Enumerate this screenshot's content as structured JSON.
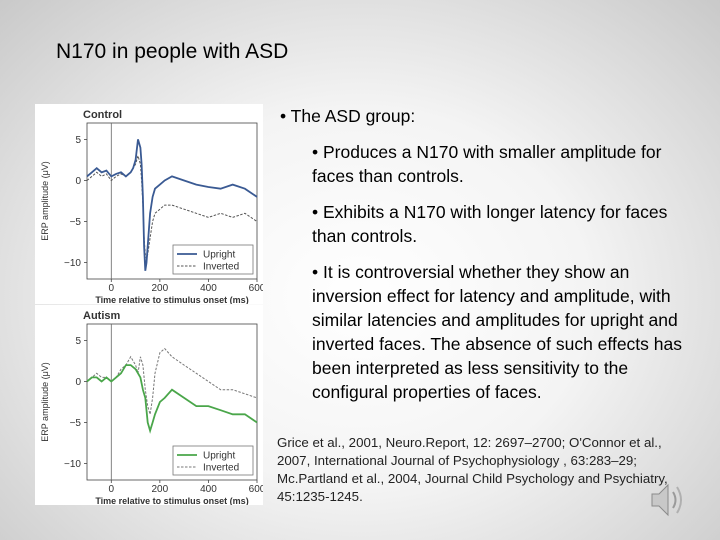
{
  "slide": {
    "title": "N170 in people with ASD",
    "bullets": {
      "main": "• The ASD group:",
      "sub": [
        "• Produces a N170 with smaller amplitude for faces than controls.",
        "• Exhibits a N170 with longer latency for faces than controls.",
        "• It is controversial whether they show an inversion effect for latency and amplitude, with similar latencies and amplitudes for upright and inverted faces. The absence of such effects has been interpreted as less sensitivity to the configural properties of faces."
      ]
    },
    "references": "Grice et al., 2001, Neuro.Report, 12: 2697–2700; O'Connor et al., 2007, International Journal of Psychophysiology , 63:283–29; Mc.Partland et al., 2004, Journal Child Psychology and Psychiatry, 45:1235-1245.",
    "icons": {
      "speaker": "speaker-icon"
    }
  },
  "chart_data": [
    {
      "type": "line",
      "title": "Control",
      "xlabel": "Time relative to stimulus onset (ms)",
      "ylabel": "ERP amplitude (μV)",
      "xlim": [
        -100,
        600
      ],
      "ylim": [
        -12,
        7
      ],
      "xticks": [
        0,
        200,
        400,
        600
      ],
      "yticks": [
        5,
        0,
        -5,
        -10
      ],
      "legend": "bottom-right",
      "series": [
        {
          "name": "Upright",
          "style": "solid",
          "color": "#3a5a93",
          "x": [
            -100,
            -80,
            -60,
            -40,
            -20,
            0,
            20,
            40,
            60,
            80,
            90,
            100,
            110,
            120,
            125,
            130,
            135,
            140,
            145,
            150,
            155,
            160,
            170,
            180,
            200,
            220,
            250,
            300,
            350,
            400,
            450,
            500,
            550,
            600
          ],
          "y": [
            0.5,
            1,
            1.5,
            1,
            1.2,
            0.5,
            0.8,
            1,
            0.5,
            1,
            1.5,
            2.5,
            5,
            4,
            2,
            -2,
            -8,
            -11,
            -10,
            -8,
            -6,
            -4,
            -2,
            -1,
            -0.5,
            0,
            0.5,
            0,
            -0.5,
            -0.8,
            -1,
            -0.5,
            -1,
            -2
          ]
        },
        {
          "name": "Inverted",
          "style": "dashed",
          "color": "#555555",
          "x": [
            -100,
            -80,
            -60,
            -40,
            -20,
            0,
            20,
            40,
            60,
            80,
            90,
            100,
            110,
            120,
            125,
            130,
            135,
            140,
            145,
            150,
            155,
            160,
            170,
            180,
            200,
            220,
            250,
            300,
            350,
            400,
            450,
            500,
            550,
            600
          ],
          "y": [
            0,
            0.5,
            1,
            0.5,
            0.8,
            0,
            0.5,
            0.8,
            0.5,
            1,
            1.5,
            2,
            3,
            2,
            0,
            -3,
            -7,
            -9,
            -9.5,
            -9,
            -8,
            -7,
            -5,
            -4,
            -3.5,
            -3,
            -3,
            -3.5,
            -4,
            -4.5,
            -4,
            -4.5,
            -4,
            -5
          ]
        }
      ]
    },
    {
      "type": "line",
      "title": "Autism",
      "xlabel": "Time relative to stimulus onset (ms)",
      "ylabel": "ERP amplitude (μV)",
      "xlim": [
        -100,
        600
      ],
      "ylim": [
        -12,
        7
      ],
      "xticks": [
        0,
        200,
        400,
        600
      ],
      "yticks": [
        5,
        0,
        -5,
        -10
      ],
      "legend": "bottom-right",
      "series": [
        {
          "name": "Upright",
          "style": "solid",
          "color": "#4aa64a",
          "x": [
            -100,
            -80,
            -60,
            -40,
            -20,
            0,
            20,
            40,
            60,
            80,
            100,
            110,
            120,
            130,
            140,
            150,
            160,
            170,
            180,
            200,
            220,
            250,
            300,
            350,
            400,
            450,
            500,
            550,
            600
          ],
          "y": [
            0,
            0.5,
            0.5,
            0,
            0.5,
            0,
            0.5,
            1,
            2,
            2,
            1.5,
            1,
            0.5,
            -1,
            -2,
            -5,
            -6,
            -5,
            -4,
            -2.5,
            -2,
            -1,
            -2,
            -3,
            -3,
            -3.5,
            -4,
            -4,
            -5
          ]
        },
        {
          "name": "Inverted",
          "style": "dashed",
          "color": "#777777",
          "x": [
            -100,
            -80,
            -60,
            -40,
            -20,
            0,
            20,
            40,
            60,
            80,
            100,
            110,
            120,
            130,
            140,
            150,
            160,
            170,
            180,
            200,
            220,
            250,
            300,
            350,
            400,
            450,
            500,
            550,
            600
          ],
          "y": [
            0,
            0.5,
            1,
            0.5,
            0.5,
            0,
            0.5,
            1.5,
            2,
            3,
            2,
            1,
            3,
            2,
            -1,
            -3,
            -4,
            -2,
            1,
            3.5,
            4,
            3,
            2,
            1,
            0,
            -1,
            -1,
            -1.5,
            -2
          ]
        }
      ]
    }
  ]
}
